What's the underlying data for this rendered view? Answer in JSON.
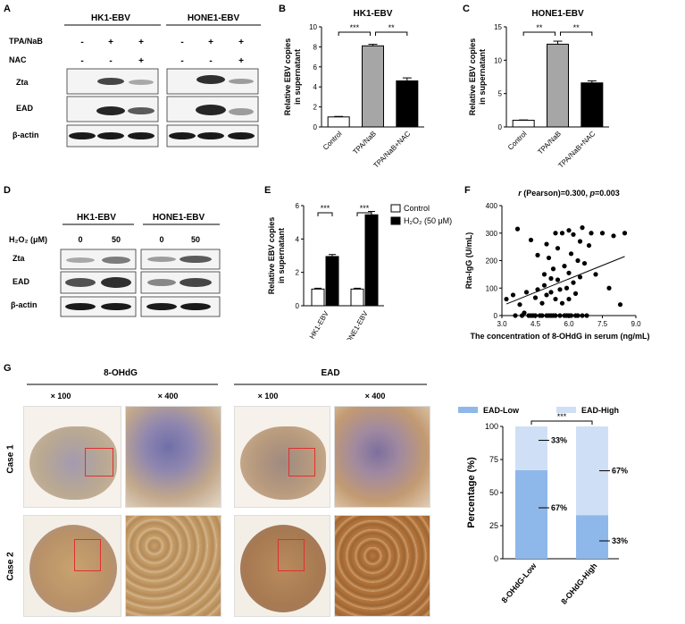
{
  "panelA": {
    "label": "A",
    "groups": [
      "HK1-EBV",
      "HONE1-EBV"
    ],
    "row_tpa": "TPA/NaB",
    "row_nac": "NAC",
    "tpa_marks": [
      "-",
      "+",
      "+",
      "-",
      "+",
      "+"
    ],
    "nac_marks": [
      "-",
      "-",
      "+",
      "-",
      "-",
      "+"
    ],
    "blots": [
      "Zta",
      "EAD",
      "β-actin"
    ]
  },
  "panelB": {
    "label": "B",
    "chart_data": {
      "type": "bar",
      "title": "HK1-EBV",
      "ylabel": "Relative EBV copies in supernatant",
      "ylabel_lines": [
        "Relative EBV copies",
        "in supernatant"
      ],
      "categories": [
        "Control",
        "TPA/NaB",
        "TPA/NaB+NAC"
      ],
      "values": [
        1.0,
        8.1,
        4.6
      ],
      "errors": [
        0.05,
        0.15,
        0.3
      ],
      "colors": [
        "#ffffff",
        "#a6a6a6",
        "#000000"
      ],
      "ylim": [
        0,
        10
      ],
      "yticks": [
        "0",
        "2",
        "4",
        "6",
        "8",
        "10"
      ],
      "significance": [
        "***",
        "**"
      ]
    }
  },
  "panelC": {
    "label": "C",
    "chart_data": {
      "type": "bar",
      "title": "HONE1-EBV",
      "ylabel": "Relative EBV copies in supernatant",
      "ylabel_lines": [
        "Relative EBV copies",
        "in supernatant"
      ],
      "categories": [
        "Control",
        "TPA/NaB",
        "TPA/NaB+NAC"
      ],
      "values": [
        1.0,
        12.4,
        6.6
      ],
      "errors": [
        0.05,
        0.45,
        0.3
      ],
      "colors": [
        "#ffffff",
        "#a6a6a6",
        "#000000"
      ],
      "ylim": [
        0,
        15
      ],
      "yticks": [
        "0",
        "5",
        "10",
        "15"
      ],
      "significance": [
        "**",
        "**"
      ]
    }
  },
  "panelD": {
    "label": "D",
    "groups": [
      "HK1-EBV",
      "HONE1-EBV"
    ],
    "row_label": "H₂O₂ (μM)",
    "doses": [
      "0",
      "50",
      "0",
      "50"
    ],
    "blots": [
      "Zta",
      "EAD",
      "β-actin"
    ]
  },
  "panelE": {
    "label": "E",
    "chart_data": {
      "type": "bar",
      "ylabel_lines": [
        "Relative EBV copies",
        "in supernatant"
      ],
      "categories": [
        "HK1-EBV",
        "HONE1-EBV"
      ],
      "series": [
        {
          "name": "Control",
          "values": [
            1.0,
            1.0
          ],
          "errors": [
            0.05,
            0.05
          ],
          "color": "#ffffff"
        },
        {
          "name": "H₂O₂ (50 μM)",
          "values": [
            2.95,
            5.45
          ],
          "errors": [
            0.12,
            0.2
          ],
          "color": "#000000"
        }
      ],
      "ylim": [
        0,
        6
      ],
      "yticks": [
        "0",
        "2",
        "4",
        "6"
      ],
      "significance": [
        "***",
        "***"
      ]
    }
  },
  "panelF": {
    "label": "F",
    "chart_data": {
      "type": "scatter",
      "title": "r (Pearson)=0.300, p=0.003",
      "title_r": "r",
      "title_mid": " (Pearson)=0.300, ",
      "title_p": "p",
      "title_end": "=0.003",
      "xlabel": "The concentration of 8-OHdG in serum (ng/mL)",
      "ylabel": "Rta-IgG (U/mL)",
      "xlim": [
        3.0,
        9.0
      ],
      "ylim": [
        0,
        400
      ],
      "xticks": [
        "3.0",
        "4.5",
        "6.0",
        "7.5",
        "9.0"
      ],
      "yticks": [
        "0",
        "100",
        "200",
        "300",
        "400"
      ],
      "fit_line": {
        "x": [
          3.2,
          8.5
        ],
        "y": [
          42,
          215
        ]
      },
      "points": [
        [
          3.2,
          60
        ],
        [
          3.5,
          75
        ],
        [
          3.7,
          315
        ],
        [
          3.8,
          40
        ],
        [
          3.9,
          0
        ],
        [
          4.0,
          10
        ],
        [
          4.1,
          85
        ],
        [
          4.2,
          0
        ],
        [
          4.3,
          275
        ],
        [
          4.4,
          0
        ],
        [
          4.5,
          65
        ],
        [
          4.5,
          0
        ],
        [
          4.6,
          95
        ],
        [
          4.7,
          0
        ],
        [
          4.8,
          45
        ],
        [
          4.8,
          0
        ],
        [
          4.9,
          150
        ],
        [
          4.9,
          110
        ],
        [
          5.0,
          0
        ],
        [
          5.0,
          75
        ],
        [
          5.1,
          210
        ],
        [
          5.1,
          0
        ],
        [
          5.2,
          135
        ],
        [
          5.2,
          85
        ],
        [
          5.3,
          0
        ],
        [
          5.3,
          170
        ],
        [
          5.4,
          60
        ],
        [
          5.4,
          0
        ],
        [
          5.5,
          245
        ],
        [
          5.5,
          130
        ],
        [
          5.6,
          0
        ],
        [
          5.6,
          95
        ],
        [
          5.7,
          300
        ],
        [
          5.7,
          45
        ],
        [
          5.8,
          0
        ],
        [
          5.8,
          180
        ],
        [
          5.9,
          100
        ],
        [
          5.9,
          0
        ],
        [
          6.0,
          310
        ],
        [
          6.0,
          155
        ],
        [
          6.0,
          60
        ],
        [
          6.1,
          0
        ],
        [
          6.1,
          225
        ],
        [
          6.2,
          295
        ],
        [
          6.2,
          120
        ],
        [
          6.3,
          0
        ],
        [
          6.3,
          80
        ],
        [
          6.4,
          200
        ],
        [
          6.4,
          0
        ],
        [
          6.5,
          270
        ],
        [
          6.5,
          140
        ],
        [
          6.6,
          0
        ],
        [
          6.7,
          190
        ],
        [
          6.8,
          0
        ],
        [
          6.9,
          255
        ],
        [
          7.0,
          300
        ],
        [
          7.2,
          150
        ],
        [
          7.5,
          300
        ],
        [
          7.8,
          100
        ],
        [
          8.0,
          290
        ],
        [
          8.3,
          40
        ],
        [
          8.5,
          300
        ],
        [
          5.0,
          260
        ],
        [
          5.4,
          300
        ],
        [
          4.6,
          220
        ],
        [
          6.6,
          320
        ],
        [
          3.6,
          0
        ],
        [
          4.3,
          0
        ],
        [
          5.2,
          0
        ],
        [
          6.0,
          0
        ]
      ]
    }
  },
  "panelG": {
    "label": "G",
    "header_8ohdg": "8-OHdG",
    "header_ead": "EAD",
    "mag": [
      "× 100",
      "× 400",
      "× 100",
      "× 400"
    ],
    "cases": [
      "Case 1",
      "Case 2"
    ],
    "chart_data": {
      "type": "bar",
      "stacked": true,
      "ylabel": "Percentage (%)",
      "categories": [
        "8-OHdG-Low",
        "8-OHdG-High"
      ],
      "series": [
        {
          "name": "EAD-Low",
          "values": [
            67,
            33
          ],
          "color": "#8fb8ea"
        },
        {
          "name": "EAD-High",
          "values": [
            33,
            67
          ],
          "color": "#cfe0f6"
        }
      ],
      "ylim": [
        0,
        100
      ],
      "yticks": [
        "0",
        "25",
        "50",
        "75",
        "100"
      ],
      "annotations": [
        "33%",
        "67%",
        "67%",
        "33%"
      ],
      "significance": "***"
    }
  }
}
